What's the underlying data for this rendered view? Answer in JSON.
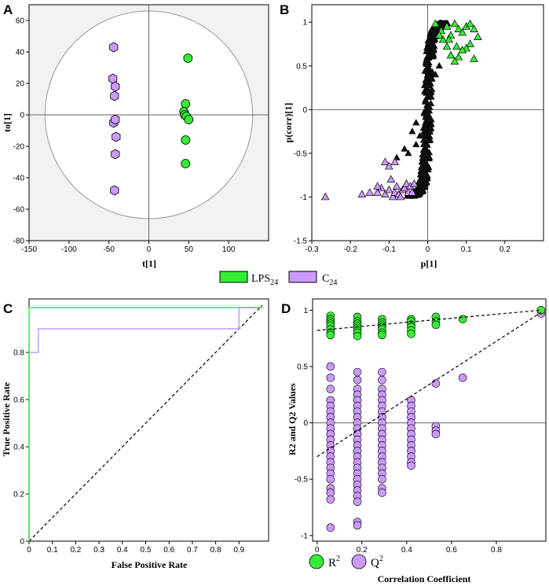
{
  "colors": {
    "green": "#33ee33",
    "purple": "#cc99ff",
    "black": "#000000",
    "bg": "#f2f2f2",
    "dark": "#111111"
  },
  "legend": {
    "lps_main": "LPS",
    "lps_sub": "24",
    "c_main": "C",
    "c_sub": "24"
  },
  "chart_data": [
    {
      "panel": "A",
      "type": "scatter",
      "xlabel": "t[1]",
      "ylabel": "to[1]",
      "xlim": [
        -150,
        150
      ],
      "ylim": [
        -80,
        70
      ],
      "xticks": [
        -150,
        -100,
        -50,
        0,
        50,
        100
      ],
      "yticks": [
        -80,
        -60,
        -40,
        -20,
        0,
        20,
        40,
        60
      ],
      "ellipse": {
        "rx": 130,
        "ry": 66
      },
      "series": [
        {
          "name": "LPS24",
          "points": [
            [
              49,
              36
            ],
            [
              46,
              7
            ],
            [
              44,
              2
            ],
            [
              45,
              0
            ],
            [
              47,
              -1
            ],
            [
              50,
              -3
            ],
            [
              46,
              -16
            ],
            [
              46,
              -31
            ]
          ]
        },
        {
          "name": "C24",
          "points": [
            [
              -44,
              43
            ],
            [
              -45,
              23
            ],
            [
              -42,
              18
            ],
            [
              -43,
              12
            ],
            [
              -44,
              -5
            ],
            [
              -42,
              -3
            ],
            [
              -41,
              -14
            ],
            [
              -42,
              -25
            ],
            [
              -43,
              -48
            ]
          ]
        }
      ]
    },
    {
      "panel": "B",
      "type": "scatter",
      "xlabel": "p[1]",
      "ylabel": "p(corr)[1]",
      "xlim": [
        -0.3,
        0.3
      ],
      "ylim": [
        -1.5,
        1.2
      ],
      "xticks": [
        -0.3,
        -0.2,
        -0.1,
        0,
        0.1,
        0.2
      ],
      "yticks": [
        -1.5,
        -1,
        -0.5,
        0,
        0.5,
        1
      ],
      "series": [
        {
          "name": "LPS24",
          "points": [
            [
              0.02,
              0.98
            ],
            [
              0.035,
              0.9
            ],
            [
              0.05,
              0.95
            ],
            [
              0.06,
              0.85
            ],
            [
              0.07,
              0.98
            ],
            [
              0.08,
              0.92
            ],
            [
              0.09,
              0.88
            ],
            [
              0.1,
              0.95
            ],
            [
              0.11,
              0.98
            ],
            [
              0.12,
              0.92
            ],
            [
              0.13,
              0.83
            ],
            [
              0.11,
              0.75
            ],
            [
              0.1,
              0.7
            ],
            [
              0.09,
              0.68
            ],
            [
              0.08,
              0.6
            ],
            [
              0.07,
              0.55
            ],
            [
              0.06,
              0.62
            ],
            [
              0.05,
              0.72
            ],
            [
              0.12,
              0.58
            ],
            [
              0.04,
              0.8
            ],
            [
              0.03,
              0.85
            ],
            [
              0.055,
              0.8
            ],
            [
              0.075,
              0.72
            ]
          ]
        },
        {
          "name": "C24",
          "points": [
            [
              -0.265,
              -1
            ],
            [
              -0.17,
              -0.97
            ],
            [
              -0.15,
              -0.95
            ],
            [
              -0.13,
              -0.95
            ],
            [
              -0.12,
              -0.9
            ],
            [
              -0.11,
              -0.97
            ],
            [
              -0.1,
              -0.92
            ],
            [
              -0.095,
              -0.8
            ],
            [
              -0.09,
              -1
            ],
            [
              -0.085,
              -0.95
            ],
            [
              -0.08,
              -0.88
            ],
            [
              -0.075,
              -0.97
            ],
            [
              -0.07,
              -1
            ],
            [
              -0.065,
              -0.92
            ],
            [
              -0.06,
              -0.9
            ],
            [
              -0.055,
              -0.85
            ],
            [
              -0.05,
              -0.95
            ],
            [
              -0.045,
              -0.88
            ],
            [
              -0.04,
              -0.95
            ],
            [
              -0.035,
              -0.85
            ],
            [
              -0.11,
              -0.6
            ],
            [
              -0.1,
              -0.65
            ],
            [
              -0.085,
              -0.6
            ],
            [
              -0.13,
              -0.88
            ]
          ]
        },
        {
          "name": "other",
          "points": []
        }
      ]
    },
    {
      "panel": "C",
      "type": "line",
      "xlabel": "False Positive Rate",
      "ylabel": "True Positive Rate",
      "xlim": [
        0,
        1
      ],
      "ylim": [
        0,
        1
      ],
      "xticks": [
        0,
        0.1,
        0.2,
        0.3,
        0.4,
        0.5,
        0.6,
        0.7,
        0.8,
        0.9
      ],
      "yticks": [
        0,
        0.2,
        0.4,
        0.6,
        0.8
      ],
      "series": [
        {
          "name": "LPS24",
          "points": [
            [
              0,
              0
            ],
            [
              0,
              0.99
            ],
            [
              1,
              0.99
            ]
          ]
        },
        {
          "name": "C24",
          "points": [
            [
              0,
              0
            ],
            [
              0,
              0.8
            ],
            [
              0.04,
              0.8
            ],
            [
              0.04,
              0.9
            ],
            [
              0.9,
              0.9
            ],
            [
              0.9,
              0.99
            ],
            [
              1,
              0.99
            ]
          ]
        },
        {
          "name": "diagonal",
          "points": [
            [
              0,
              0
            ],
            [
              1,
              1
            ]
          ]
        }
      ]
    },
    {
      "panel": "D",
      "type": "scatter",
      "xlabel": "Correlation Coefficient",
      "ylabel": "R2 and Q2 Values",
      "xlim": [
        0,
        1
      ],
      "ylim": [
        -1.05,
        1.1
      ],
      "xticks": [
        0,
        0.2,
        0.4,
        0.6,
        0.8
      ],
      "yticks": [
        -1,
        -0.5,
        0,
        0.5,
        1
      ],
      "legend": {
        "r_main": "R",
        "q_main": "Q",
        "sup": "2"
      },
      "r2_line": [
        [
          0,
          0.82
        ],
        [
          1,
          1
        ]
      ],
      "q2_line": [
        [
          0,
          -0.3
        ],
        [
          1,
          0.98
        ]
      ],
      "series": [
        {
          "name": "R2",
          "points": [
            [
              0.06,
              0.95
            ],
            [
              0.06,
              0.92
            ],
            [
              0.06,
              0.9
            ],
            [
              0.06,
              0.88
            ],
            [
              0.06,
              0.86
            ],
            [
              0.06,
              0.83
            ],
            [
              0.06,
              0.8
            ],
            [
              0.06,
              0.78
            ],
            [
              0.18,
              0.94
            ],
            [
              0.18,
              0.9
            ],
            [
              0.18,
              0.88
            ],
            [
              0.18,
              0.86
            ],
            [
              0.18,
              0.84
            ],
            [
              0.18,
              0.82
            ],
            [
              0.18,
              0.8
            ],
            [
              0.18,
              0.77
            ],
            [
              0.29,
              0.92
            ],
            [
              0.29,
              0.89
            ],
            [
              0.29,
              0.87
            ],
            [
              0.29,
              0.85
            ],
            [
              0.29,
              0.83
            ],
            [
              0.29,
              0.8
            ],
            [
              0.29,
              0.78
            ],
            [
              0.42,
              0.92
            ],
            [
              0.42,
              0.9
            ],
            [
              0.42,
              0.87
            ],
            [
              0.42,
              0.85
            ],
            [
              0.42,
              0.82
            ],
            [
              0.42,
              0.79
            ],
            [
              0.53,
              0.94
            ],
            [
              0.53,
              0.9
            ],
            [
              0.53,
              0.87
            ],
            [
              0.65,
              0.92
            ],
            [
              1,
              1
            ]
          ]
        },
        {
          "name": "Q2",
          "points": [
            [
              0.06,
              0.5
            ],
            [
              0.06,
              0.4
            ],
            [
              0.06,
              0.3
            ],
            [
              0.06,
              0.2
            ],
            [
              0.06,
              0.15
            ],
            [
              0.06,
              0.1
            ],
            [
              0.06,
              0.05
            ],
            [
              0.06,
              0
            ],
            [
              0.06,
              -0.05
            ],
            [
              0.06,
              -0.1
            ],
            [
              0.06,
              -0.15
            ],
            [
              0.06,
              -0.2
            ],
            [
              0.06,
              -0.25
            ],
            [
              0.06,
              -0.3
            ],
            [
              0.06,
              -0.35
            ],
            [
              0.06,
              -0.4
            ],
            [
              0.06,
              -0.45
            ],
            [
              0.06,
              -0.5
            ],
            [
              0.06,
              -0.58
            ],
            [
              0.06,
              -0.62
            ],
            [
              0.06,
              -0.68
            ],
            [
              0.06,
              -0.93
            ],
            [
              0.18,
              0.45
            ],
            [
              0.18,
              0.38
            ],
            [
              0.18,
              0.3
            ],
            [
              0.18,
              0.25
            ],
            [
              0.18,
              0.2
            ],
            [
              0.18,
              0.15
            ],
            [
              0.18,
              0.1
            ],
            [
              0.18,
              0.05
            ],
            [
              0.18,
              0
            ],
            [
              0.18,
              -0.05
            ],
            [
              0.18,
              -0.1
            ],
            [
              0.18,
              -0.15
            ],
            [
              0.18,
              -0.2
            ],
            [
              0.18,
              -0.25
            ],
            [
              0.18,
              -0.3
            ],
            [
              0.18,
              -0.35
            ],
            [
              0.18,
              -0.4
            ],
            [
              0.18,
              -0.45
            ],
            [
              0.18,
              -0.5
            ],
            [
              0.18,
              -0.55
            ],
            [
              0.18,
              -0.6
            ],
            [
              0.18,
              -0.65
            ],
            [
              0.18,
              -0.7
            ],
            [
              0.18,
              -0.88
            ],
            [
              0.18,
              -0.91
            ],
            [
              0.29,
              0.45
            ],
            [
              0.29,
              0.38
            ],
            [
              0.29,
              0.3
            ],
            [
              0.29,
              0.25
            ],
            [
              0.29,
              0.2
            ],
            [
              0.29,
              0.15
            ],
            [
              0.29,
              0.1
            ],
            [
              0.29,
              0.05
            ],
            [
              0.29,
              0
            ],
            [
              0.29,
              -0.05
            ],
            [
              0.29,
              -0.1
            ],
            [
              0.29,
              -0.15
            ],
            [
              0.29,
              -0.2
            ],
            [
              0.29,
              -0.25
            ],
            [
              0.29,
              -0.3
            ],
            [
              0.29,
              -0.35
            ],
            [
              0.29,
              -0.4
            ],
            [
              0.29,
              -0.45
            ],
            [
              0.29,
              -0.5
            ],
            [
              0.29,
              -0.58
            ],
            [
              0.29,
              -0.62
            ],
            [
              0.42,
              0.2
            ],
            [
              0.42,
              0.15
            ],
            [
              0.42,
              0.1
            ],
            [
              0.42,
              0.05
            ],
            [
              0.42,
              0
            ],
            [
              0.42,
              -0.05
            ],
            [
              0.42,
              -0.1
            ],
            [
              0.42,
              -0.15
            ],
            [
              0.42,
              -0.2
            ],
            [
              0.42,
              -0.25
            ],
            [
              0.42,
              -0.3
            ],
            [
              0.42,
              -0.35
            ],
            [
              0.42,
              -0.38
            ],
            [
              0.53,
              0.35
            ],
            [
              0.53,
              -0.03
            ],
            [
              0.53,
              -0.07
            ],
            [
              0.53,
              -0.1
            ],
            [
              0.65,
              0.4
            ],
            [
              1,
              0.97
            ]
          ]
        }
      ]
    }
  ]
}
